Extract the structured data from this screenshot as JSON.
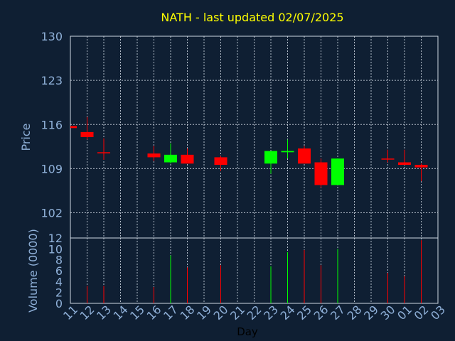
{
  "chart_data": {
    "type": "candlestick",
    "title": "NATH - last updated 02/07/2025",
    "xlabel": "Day",
    "ylabel": "Price",
    "volume_label": "Volume (0000)",
    "colors": {
      "background": "#0f1f33",
      "up": "#00ff00",
      "down": "#ff0000",
      "title": "#ffff00",
      "axis_text": "#8fb0d8",
      "grid": "#cfd8e3"
    },
    "price_ylim": [
      98,
      130
    ],
    "price_ticks": [
      "130",
      "123",
      "116",
      "109",
      "102"
    ],
    "volume_ylim": [
      0,
      12
    ],
    "volume_ticks": [
      "12",
      "10",
      "8",
      "6",
      "4",
      "2",
      "0"
    ],
    "x_ticks": [
      "11",
      "12",
      "13",
      "14",
      "15",
      "16",
      "17",
      "18",
      "19",
      "20",
      "21",
      "22",
      "23",
      "24",
      "25",
      "26",
      "27",
      "28",
      "29",
      "30",
      "01",
      "02",
      "03"
    ],
    "candles": [
      {
        "day": "12",
        "open": 114.8,
        "high": 117.2,
        "low": 113.6,
        "close": 114.0,
        "volume": 3.2
      },
      {
        "day": "13",
        "open": 111.6,
        "high": 113.8,
        "low": 110.4,
        "close": 111.6,
        "volume": 3.2
      },
      {
        "day": "16",
        "open": 111.4,
        "high": 112.6,
        "low": 110.2,
        "close": 110.8,
        "volume": 3.0
      },
      {
        "day": "17",
        "open": 110.0,
        "high": 113.0,
        "low": 109.8,
        "close": 111.2,
        "volume": 8.8
      },
      {
        "day": "18",
        "open": 111.2,
        "high": 112.2,
        "low": 109.8,
        "close": 109.8,
        "volume": 6.6
      },
      {
        "day": "20",
        "open": 110.8,
        "high": 111.0,
        "low": 108.6,
        "close": 109.6,
        "volume": 7.0
      },
      {
        "day": "23",
        "open": 109.8,
        "high": 111.8,
        "low": 108.2,
        "close": 111.8,
        "volume": 6.8
      },
      {
        "day": "24",
        "open": 111.6,
        "high": 113.6,
        "low": 110.6,
        "close": 111.8,
        "volume": 9.4
      },
      {
        "day": "25",
        "open": 112.2,
        "high": 112.6,
        "low": 109.8,
        "close": 109.8,
        "volume": 9.8
      },
      {
        "day": "26",
        "open": 110.0,
        "high": 110.6,
        "low": 106.0,
        "close": 106.4,
        "volume": 7.0
      },
      {
        "day": "27",
        "open": 106.4,
        "high": 110.6,
        "low": 106.4,
        "close": 110.6,
        "volume": 10.0
      },
      {
        "day": "30",
        "open": 110.6,
        "high": 112.0,
        "low": 110.0,
        "close": 110.6,
        "volume": 5.6
      },
      {
        "day": "01",
        "open": 110.0,
        "high": 112.0,
        "low": 109.6,
        "close": 109.6,
        "volume": 5.0
      },
      {
        "day": "02",
        "open": 109.6,
        "high": 109.8,
        "low": 107.0,
        "close": 109.2,
        "volume": 11.6
      }
    ],
    "partial_candle": {
      "day": "11",
      "open": 115.6,
      "close": 115.6,
      "high": 115.6,
      "low": 115.6
    }
  }
}
